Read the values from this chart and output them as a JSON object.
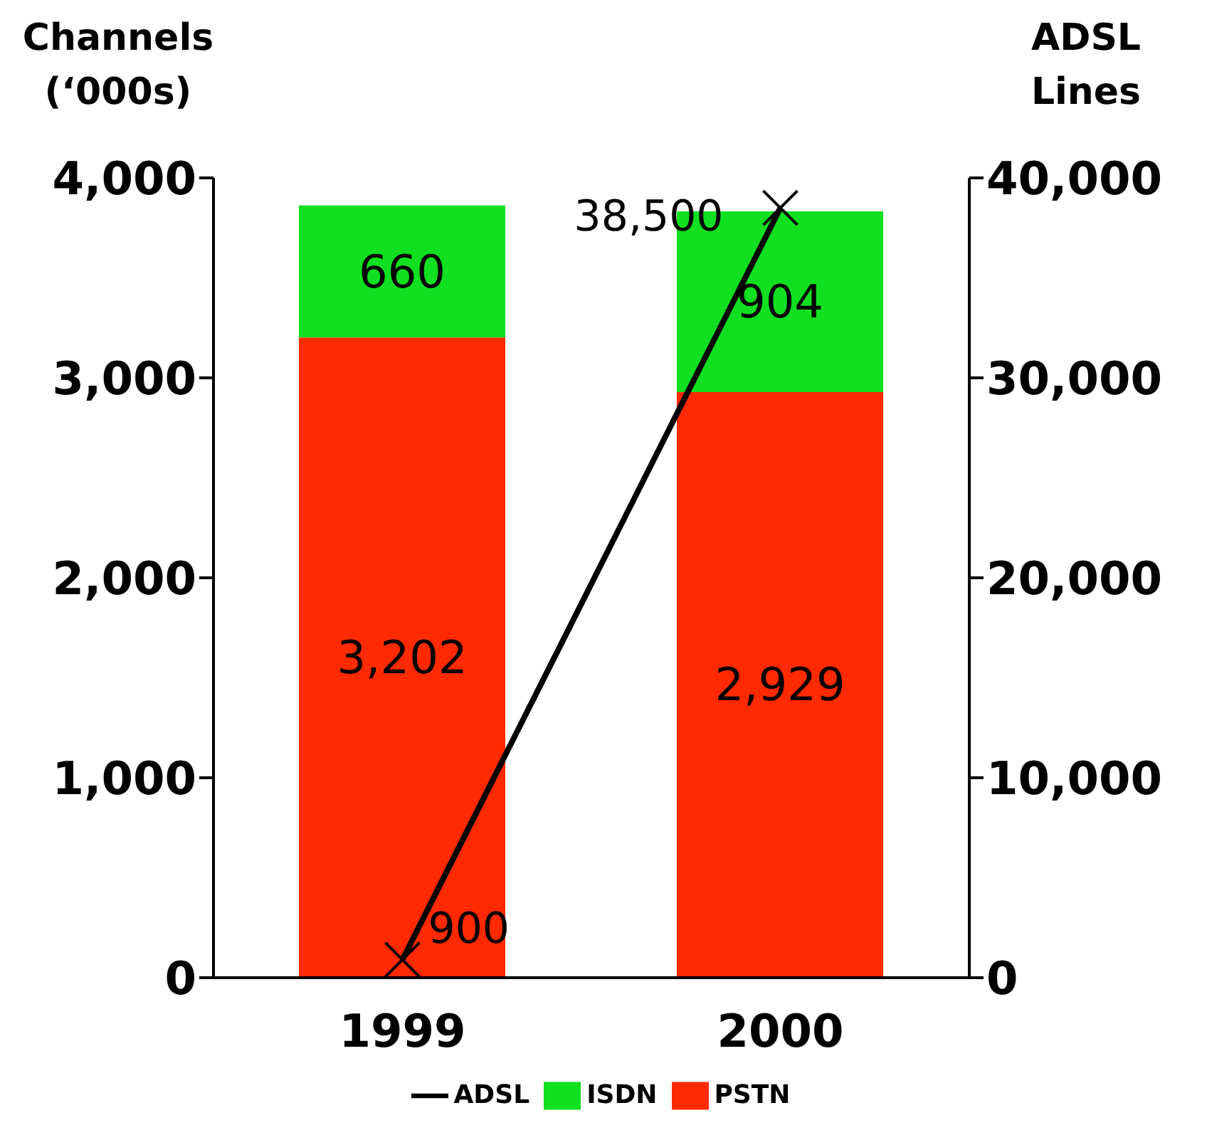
{
  "chart_data": {
    "type": "bar",
    "stacked": true,
    "categories": [
      "1999",
      "2000"
    ],
    "ylabel": "Channels (‘000s)",
    "y2label": "ADSL Lines",
    "series": [
      {
        "name": "PSTN",
        "color": "#ff2a00",
        "values": [
          3202,
          2929
        ],
        "value_labels": [
          "3,202",
          "2,929"
        ]
      },
      {
        "name": "ISDN",
        "color": "#10e020",
        "values": [
          660,
          904
        ],
        "value_labels": [
          "660",
          "904"
        ]
      },
      {
        "name": "ADSL",
        "type": "line",
        "axis": "y2",
        "color": "#000000",
        "marker": "cross",
        "values": [
          900,
          38500
        ],
        "value_labels": [
          "900",
          "38,500"
        ]
      }
    ],
    "ylim": [
      0,
      4000
    ],
    "yticks": [
      0,
      {
        "value": 1000,
        "label": "1,000"
      },
      {
        "value": 2000,
        "label": "2,000"
      },
      {
        "value": 3000,
        "label": "3,000"
      },
      {
        "value": 4000,
        "label": "4,000"
      }
    ],
    "y2lim": [
      0,
      40000
    ],
    "y2ticks": [
      0,
      {
        "value": 10000,
        "label": "10,000"
      },
      {
        "value": 20000,
        "label": "20,000"
      },
      {
        "value": 30000,
        "label": "30,000"
      },
      {
        "value": 40000,
        "label": "40,000"
      }
    ],
    "grid": false,
    "legend": "bottom"
  }
}
